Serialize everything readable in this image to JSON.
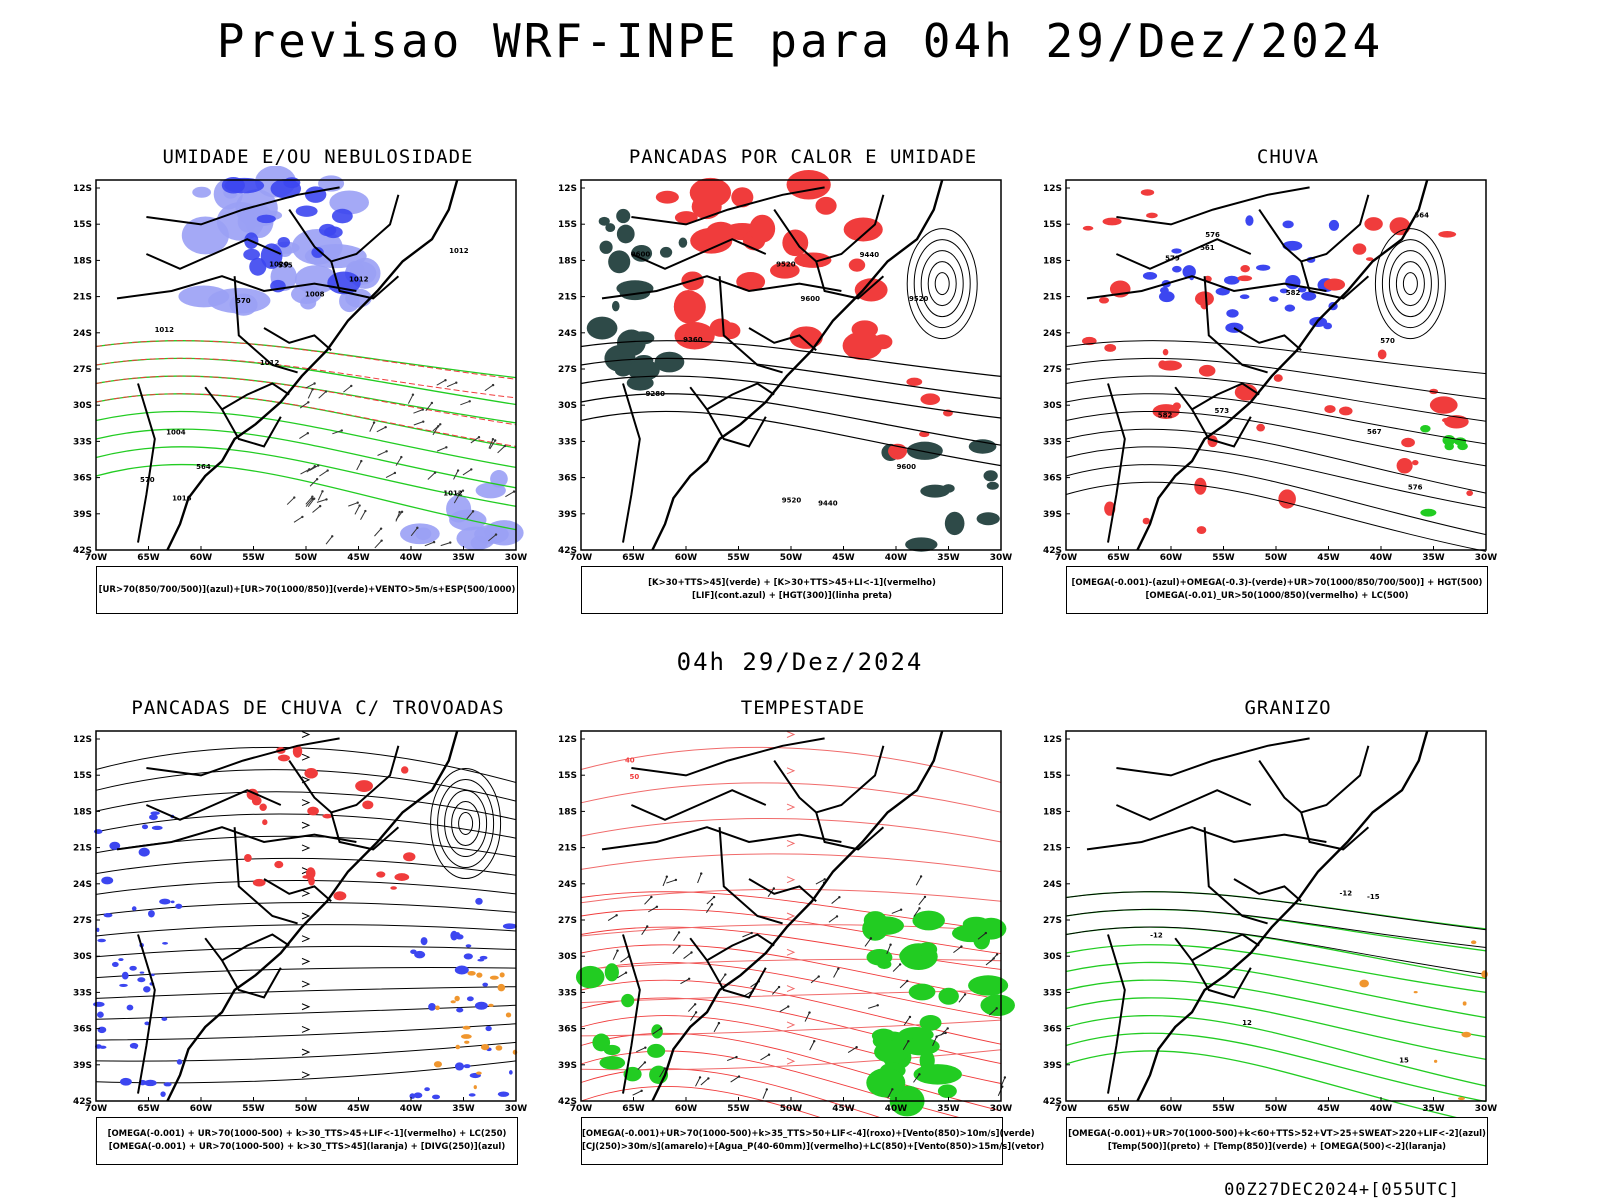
{
  "title": "Previsao WRF-INPE  para 04h 29/Dez/2024",
  "subtitle": "04h 29/Dez/2024",
  "footer": "00Z27DEC2024+[055UTC]",
  "lat_labels": [
    "12S",
    "15S",
    "18S",
    "21S",
    "24S",
    "27S",
    "30S",
    "33S",
    "36S",
    "39S",
    "42S"
  ],
  "lon_labels": [
    "70W",
    "65W",
    "60W",
    "55W",
    "50W",
    "45W",
    "40W",
    "35W",
    "30W"
  ],
  "panels": [
    {
      "title": "UMIDADE E/OU NEBULOSIDADE",
      "legend": [
        "[UR>70(850/700/500)](azul)+[UR>70(1000/850)](verde)+VENTO>5m/s+ESP(500/1000)"
      ],
      "labels": [
        "1012",
        "1012",
        "1012",
        "1012",
        "1012",
        "1016",
        "1020",
        "1008",
        "1004",
        "570",
        "570",
        "564",
        "555"
      ]
    },
    {
      "title": "PANCADAS POR CALOR E UMIDADE",
      "legend": [
        "[K>30+TTS>45](verde) + [K>30+TTS>45+LI<-1](vermelho)",
        "[LIF](cont.azul) + [HGT(300)](linha preta)"
      ],
      "labels": [
        "9600",
        "9600",
        "9600",
        "9520",
        "9520",
        "9520",
        "9440",
        "9440",
        "9360",
        "9280"
      ]
    },
    {
      "title": "CHUVA",
      "legend": [
        "[OMEGA(-0.001)-(azul)+OMEGA(-0.3)-(verde)+UR>70(1000/850/700/500)] + HGT(500)",
        "[OMEGA(-0.01)_UR>50(1000/850)(vermelho) + LC(500)"
      ],
      "labels": [
        "582",
        "582",
        "579",
        "576",
        "573",
        "570",
        "567",
        "564",
        "561",
        "576"
      ]
    },
    {
      "title": "PANCADAS DE CHUVA C/ TROVOADAS",
      "legend": [
        "[OMEGA(-0.001) + UR>70(1000-500) + k>30_TTS>45+LIF<-1](vermelho) + LC(250)",
        "[OMEGA(-0.001) + UR>70(1000-500) + k>30_TTS>45](laranja) + [DIVG(250)](azul)"
      ],
      "labels": []
    },
    {
      "title": "TEMPESTADE",
      "legend": [
        "[OMEGA(-0.001)+UR>70(1000-500)+k>35_TTS>50+LIF<-4](roxo)+[Vento(850)>10m/s](verde)",
        "[CJ(250)>30m/s](amarelo)+[Agua_P(40-60mm)](vermelho)+LC(850)+[Vento(850)>15m/s](vetor)"
      ],
      "labels": [
        "50",
        "40"
      ]
    },
    {
      "title": "GRANIZO",
      "legend": [
        "[OMEGA(-0.001)+UR>70(1000-500)+k<60+TTS>52+VT>25+SWEAT>220+LIF<-2](azul)",
        "[Temp(500)](preto) + [Temp(850)](verde) + [OMEGA(500)<-2](laranja)"
      ],
      "labels": [
        "-12",
        "-15",
        "-12",
        "12",
        "15"
      ]
    }
  ],
  "colors": {
    "red": "#f03c3c",
    "blue": "#3c46f0",
    "lightblue": "#9aa0f5",
    "green": "#22cc22",
    "darkteal": "#2e4a48",
    "orange": "#f0962e"
  }
}
